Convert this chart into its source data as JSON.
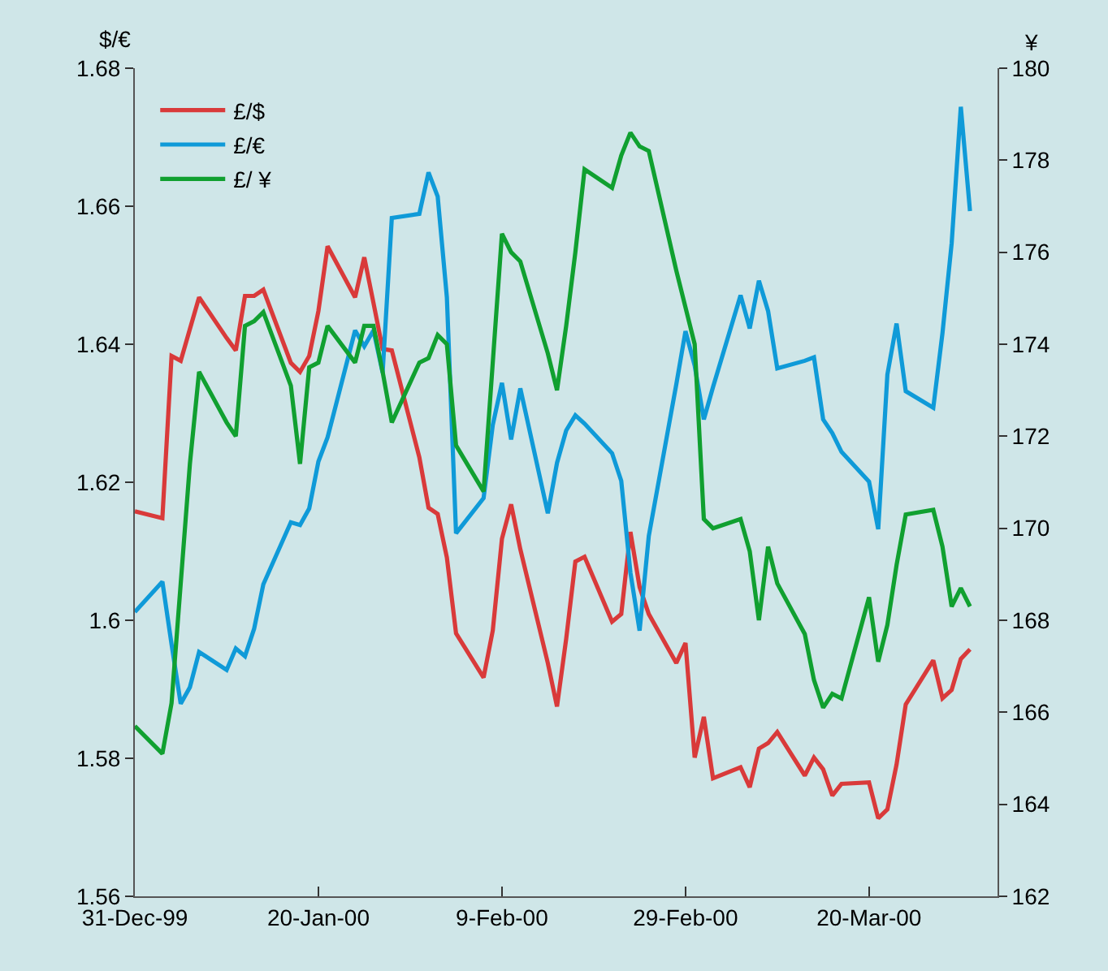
{
  "chart_data": {
    "type": "line",
    "ylabel": "$/€",
    "y2label": "¥",
    "x": [
      "1999-12-31",
      "2000-01-03",
      "2000-01-04",
      "2000-01-05",
      "2000-01-06",
      "2000-01-07",
      "2000-01-10",
      "2000-01-11",
      "2000-01-12",
      "2000-01-13",
      "2000-01-14",
      "2000-01-17",
      "2000-01-18",
      "2000-01-19",
      "2000-01-20",
      "2000-01-21",
      "2000-01-24",
      "2000-01-25",
      "2000-01-26",
      "2000-01-27",
      "2000-01-28",
      "2000-01-31",
      "2000-02-01",
      "2000-02-02",
      "2000-02-03",
      "2000-02-04",
      "2000-02-07",
      "2000-02-08",
      "2000-02-09",
      "2000-02-10",
      "2000-02-11",
      "2000-02-14",
      "2000-02-15",
      "2000-02-16",
      "2000-02-17",
      "2000-02-18",
      "2000-02-21",
      "2000-02-22",
      "2000-02-23",
      "2000-02-24",
      "2000-02-25",
      "2000-02-28",
      "2000-02-29",
      "2000-03-01",
      "2000-03-02",
      "2000-03-03",
      "2000-03-06",
      "2000-03-07",
      "2000-03-08",
      "2000-03-09",
      "2000-03-10",
      "2000-03-13",
      "2000-03-14",
      "2000-03-15",
      "2000-03-16",
      "2000-03-17",
      "2000-03-20",
      "2000-03-21",
      "2000-03-22",
      "2000-03-23",
      "2000-03-24",
      "2000-03-27",
      "2000-03-28",
      "2000-03-29",
      "2000-03-30",
      "2000-03-31"
    ],
    "series": [
      {
        "name": "£/$",
        "color": "#d93a3a",
        "values": [
          1.6158,
          1.6148,
          1.6383,
          1.6376,
          1.6422,
          1.6468,
          1.6409,
          1.6391,
          1.647,
          1.647,
          1.6479,
          1.6373,
          1.636,
          1.6383,
          1.6448,
          1.6542,
          1.6468,
          1.6526,
          1.646,
          1.6393,
          1.6391,
          1.6236,
          1.6163,
          1.6154,
          1.6091,
          1.5981,
          1.5917,
          1.5985,
          1.6118,
          1.6168,
          1.6103,
          1.5938,
          1.5875,
          1.5973,
          1.6085,
          1.6092,
          1.5998,
          1.6009,
          1.6128,
          1.6048,
          1.6009,
          1.5938,
          1.5967,
          1.5801,
          1.586,
          1.5771,
          1.5787,
          1.5758,
          1.5814,
          1.5822,
          1.5838,
          1.5775,
          1.5801,
          1.5784,
          1.5746,
          1.5763,
          1.5765,
          1.5713,
          1.5726,
          1.5791,
          1.5878,
          1.5942,
          1.5887,
          1.5899,
          1.5944,
          1.5958
        ]
      },
      {
        "name": "£/€",
        "color": "#0f9ad8",
        "values": [
          1.6012,
          1.6056,
          1.5965,
          1.5879,
          1.5903,
          1.5954,
          1.5928,
          1.5959,
          1.5948,
          1.5988,
          1.6052,
          1.6142,
          1.6138,
          1.6162,
          1.623,
          1.6265,
          1.642,
          1.6397,
          1.642,
          1.6359,
          1.6583,
          1.6589,
          1.6649,
          1.6614,
          1.6468,
          1.6126,
          1.6177,
          1.6283,
          1.6344,
          1.6262,
          1.6336,
          1.6155,
          1.6228,
          1.6275,
          1.6297,
          1.6285,
          1.6242,
          1.6202,
          1.6069,
          1.5985,
          1.6122,
          1.6342,
          1.6419,
          1.6369,
          1.6291,
          1.6338,
          1.6471,
          1.6423,
          1.6492,
          1.6448,
          1.6365,
          1.6376,
          1.6381,
          1.6291,
          1.6271,
          1.6244,
          1.6201,
          1.6132,
          1.6356,
          1.643,
          1.6332,
          1.6308,
          1.6416,
          1.6546,
          1.6744,
          1.6593
        ]
      },
      {
        "name": "£/ ¥",
        "color": "#10a030",
        "axis": "y2",
        "values": [
          165.7,
          165.1,
          166.2,
          168.8,
          171.4,
          173.4,
          172.3,
          172.0,
          174.4,
          174.5,
          174.7,
          173.1,
          171.4,
          173.5,
          173.6,
          174.4,
          173.6,
          174.4,
          174.4,
          173.4,
          172.3,
          173.6,
          173.7,
          174.2,
          174.0,
          171.8,
          170.8,
          173.6,
          176.4,
          176.0,
          175.8,
          173.8,
          173.0,
          174.4,
          176.0,
          177.8,
          177.4,
          178.1,
          178.6,
          178.3,
          178.2,
          175.6,
          174.8,
          174.0,
          170.2,
          170.0,
          170.2,
          169.5,
          168.0,
          169.6,
          168.8,
          167.7,
          166.7,
          166.1,
          166.4,
          166.3,
          168.5,
          167.1,
          167.9,
          169.2,
          170.3,
          170.4,
          169.6,
          168.3,
          168.7,
          168.3
        ]
      }
    ],
    "xlim": [
      "1999-12-31",
      "2000-04-03"
    ],
    "xticks": [
      {
        "value": "1999-12-31",
        "label": "31-Dec-99"
      },
      {
        "value": "2000-01-20",
        "label": "20-Jan-00"
      },
      {
        "value": "2000-02-09",
        "label": "9-Feb-00"
      },
      {
        "value": "2000-02-29",
        "label": "29-Feb-00"
      },
      {
        "value": "2000-03-20",
        "label": "20-Mar-00"
      }
    ],
    "ylim": [
      1.56,
      1.68
    ],
    "yticks": [
      1.56,
      1.58,
      1.6,
      1.62,
      1.64,
      1.66,
      1.68
    ],
    "y2lim": [
      162,
      180
    ],
    "y2ticks": [
      162,
      164,
      166,
      168,
      170,
      172,
      174,
      176,
      178,
      180
    ],
    "grid": false,
    "legend": "top left",
    "marker": "none",
    "line_style": "solid"
  }
}
